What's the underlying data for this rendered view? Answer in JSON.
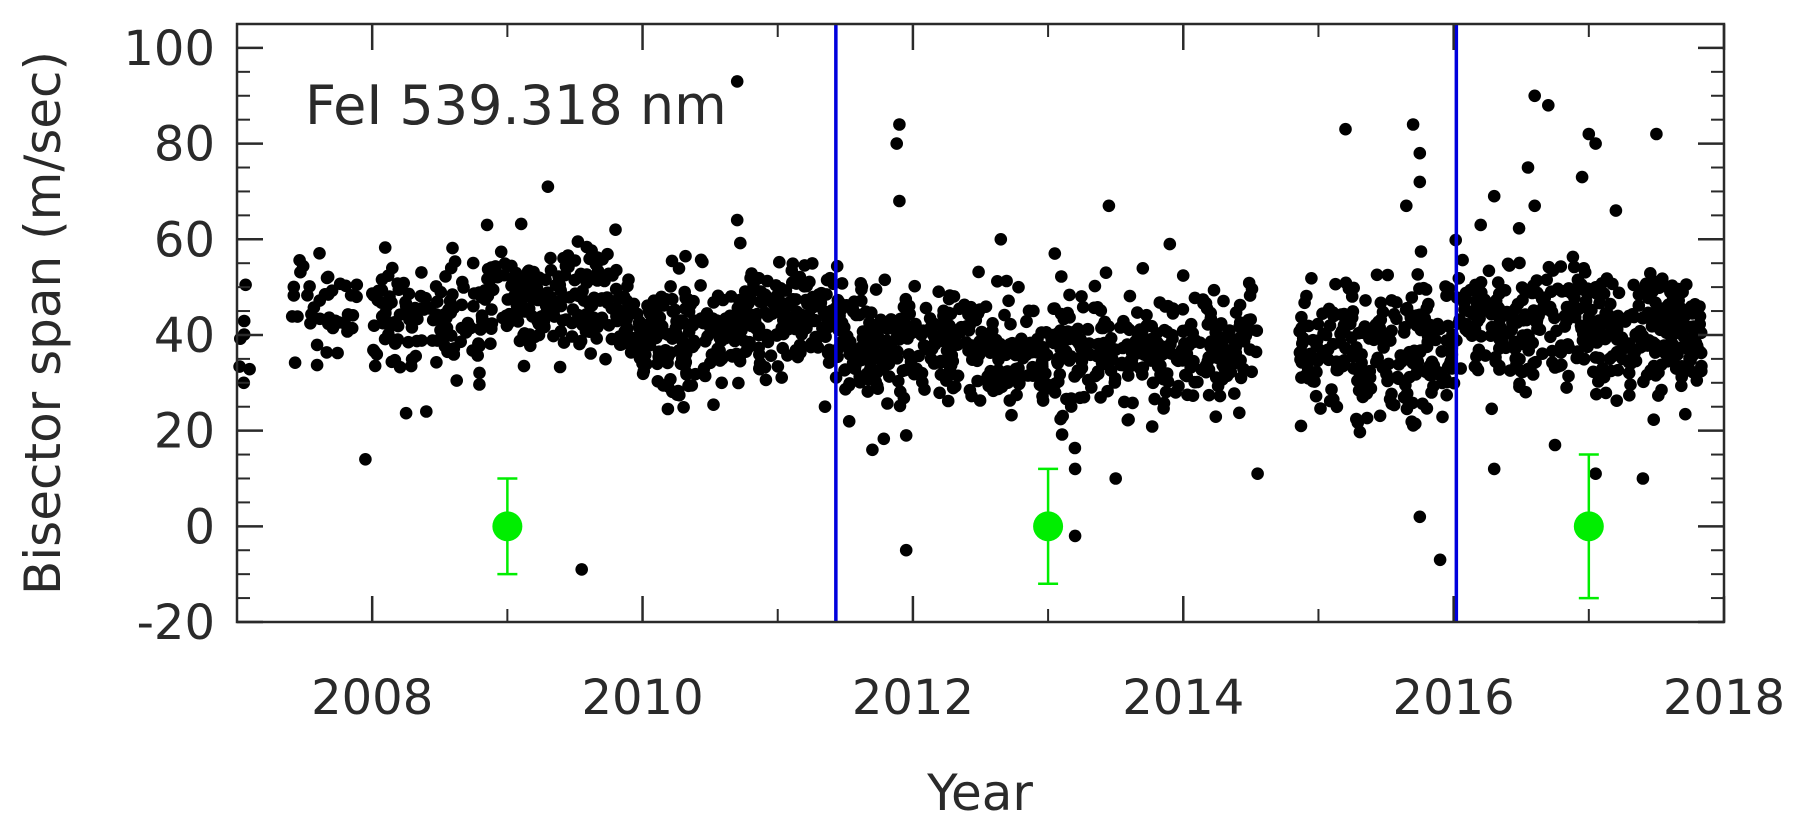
{
  "chart_data": {
    "type": "scatter",
    "title": "",
    "annotation": "FeI 539.318 nm",
    "xlabel": "Year",
    "ylabel": "Bisector span (m/sec)",
    "xlim": [
      2007.0,
      2018.0
    ],
    "ylim": [
      -20,
      105
    ],
    "x_ticks": [
      2008,
      2010,
      2012,
      2014,
      2016,
      2018
    ],
    "x_tick_labels": [
      "2008",
      "2010",
      "2012",
      "2014",
      "2016",
      "2018"
    ],
    "y_ticks": [
      -20,
      0,
      20,
      40,
      60,
      80,
      100
    ],
    "y_tick_labels": [
      "-20",
      "0",
      "20",
      "40",
      "60",
      "80",
      "100"
    ],
    "grid": false,
    "colors": {
      "points": "#000000",
      "vlines": "#0000dd",
      "errorbars": "#00ee00"
    },
    "vertical_lines_x": [
      2011.43,
      2016.02
    ],
    "error_bars": [
      {
        "x": 2009.0,
        "y": 0,
        "ylow": -10,
        "yhigh": 10
      },
      {
        "x": 2013.0,
        "y": 0,
        "ylow": -12,
        "yhigh": 12
      },
      {
        "x": 2017.0,
        "y": 0,
        "ylow": -15,
        "yhigh": 15
      }
    ],
    "segments": [
      {
        "x_start": 2007.0,
        "x_end": 2007.1,
        "count": 6,
        "mean": 45,
        "spread": 6
      },
      {
        "x_start": 2007.4,
        "x_end": 2007.9,
        "count": 40,
        "mean": 47,
        "spread": 6
      },
      {
        "x_start": 2008.0,
        "x_end": 2008.8,
        "count": 120,
        "mean": 43,
        "spread": 6
      },
      {
        "x_start": 2008.8,
        "x_end": 2009.9,
        "count": 200,
        "mean": 47,
        "spread": 6
      },
      {
        "x_start": 2009.9,
        "x_end": 2010.7,
        "count": 160,
        "mean": 40,
        "spread": 6
      },
      {
        "x_start": 2010.7,
        "x_end": 2011.45,
        "count": 170,
        "mean": 44,
        "spread": 6
      },
      {
        "x_start": 2011.45,
        "x_end": 2012.7,
        "count": 260,
        "mean": 38,
        "spread": 6
      },
      {
        "x_start": 2012.7,
        "x_end": 2013.6,
        "count": 180,
        "mean": 36,
        "spread": 6
      },
      {
        "x_start": 2013.6,
        "x_end": 2014.55,
        "count": 180,
        "mean": 37,
        "spread": 6
      },
      {
        "x_start": 2014.85,
        "x_end": 2016.0,
        "count": 230,
        "mean": 37,
        "spread": 7
      },
      {
        "x_start": 2016.0,
        "x_end": 2017.0,
        "count": 200,
        "mean": 44,
        "spread": 7
      },
      {
        "x_start": 2017.0,
        "x_end": 2017.85,
        "count": 200,
        "mean": 40,
        "spread": 6
      }
    ],
    "outliers": [
      {
        "x": 2009.3,
        "y": 71
      },
      {
        "x": 2010.7,
        "y": 93
      },
      {
        "x": 2010.7,
        "y": 64
      },
      {
        "x": 2009.8,
        "y": 62
      },
      {
        "x": 2008.85,
        "y": 63
      },
      {
        "x": 2007.95,
        "y": 14
      },
      {
        "x": 2009.55,
        "y": -9
      },
      {
        "x": 2007.05,
        "y": 30
      },
      {
        "x": 2008.4,
        "y": 24
      },
      {
        "x": 2011.35,
        "y": 25
      },
      {
        "x": 2011.9,
        "y": 84
      },
      {
        "x": 2011.88,
        "y": 80
      },
      {
        "x": 2011.9,
        "y": 68
      },
      {
        "x": 2011.95,
        "y": -5
      },
      {
        "x": 2011.7,
        "y": 16
      },
      {
        "x": 2011.95,
        "y": 19
      },
      {
        "x": 2012.65,
        "y": 60
      },
      {
        "x": 2013.05,
        "y": 57
      },
      {
        "x": 2013.45,
        "y": 67
      },
      {
        "x": 2013.2,
        "y": 12
      },
      {
        "x": 2013.2,
        "y": -2
      },
      {
        "x": 2013.5,
        "y": 10
      },
      {
        "x": 2013.9,
        "y": 59
      },
      {
        "x": 2014.55,
        "y": 11
      },
      {
        "x": 2015.2,
        "y": 83
      },
      {
        "x": 2015.7,
        "y": 84
      },
      {
        "x": 2015.75,
        "y": 78
      },
      {
        "x": 2015.75,
        "y": 72
      },
      {
        "x": 2015.65,
        "y": 67
      },
      {
        "x": 2015.75,
        "y": 2
      },
      {
        "x": 2015.9,
        "y": -7
      },
      {
        "x": 2016.3,
        "y": 69
      },
      {
        "x": 2016.2,
        "y": 63
      },
      {
        "x": 2016.3,
        "y": 12
      },
      {
        "x": 2016.6,
        "y": 90
      },
      {
        "x": 2016.7,
        "y": 88
      },
      {
        "x": 2017.0,
        "y": 82
      },
      {
        "x": 2017.05,
        "y": 80
      },
      {
        "x": 2017.5,
        "y": 82
      },
      {
        "x": 2016.55,
        "y": 75
      },
      {
        "x": 2016.95,
        "y": 73
      },
      {
        "x": 2017.2,
        "y": 66
      },
      {
        "x": 2016.6,
        "y": 67
      },
      {
        "x": 2017.05,
        "y": 11
      },
      {
        "x": 2017.4,
        "y": 10
      },
      {
        "x": 2016.75,
        "y": 17
      }
    ]
  }
}
